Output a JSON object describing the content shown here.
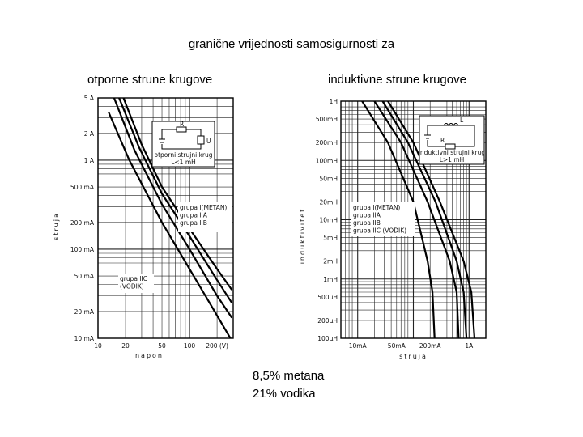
{
  "slide": {
    "title": "granične vrijednosti samosigurnosti za",
    "left_heading": "otporne strune krugove",
    "right_heading": "induktivne strune krugove",
    "notes": [
      "8,5% metana",
      "21% vodika"
    ]
  },
  "chart_data": [
    {
      "type": "line",
      "title": "",
      "xlabel": "napon",
      "ylabel": "struja",
      "x_scale": "log",
      "y_scale": "log",
      "xlim": [
        10,
        300
      ],
      "ylim": [
        0.01,
        5
      ],
      "x_tick_labels": [
        "10",
        "20",
        "50",
        "100",
        "200 (V)"
      ],
      "x_tick_values": [
        10,
        20,
        50,
        100,
        200
      ],
      "y_tick_labels": [
        "5 A",
        "2 A",
        "1 A",
        "500 mA",
        "200 mA",
        "100 mA",
        "50 mA",
        "20 mA",
        "10 mA"
      ],
      "y_tick_values": [
        5,
        2,
        1,
        0.5,
        0.2,
        0.1,
        0.05,
        0.02,
        0.01
      ],
      "inset": [
        "otporni strujni krug",
        "L<1 mH"
      ],
      "annotation": [
        "grupa IIC",
        "(VODIK)"
      ],
      "series": [
        {
          "name": "grupa I(METAN)",
          "points": [
            [
              19,
              5
            ],
            [
              30,
              1.5
            ],
            [
              50,
              0.5
            ],
            [
              100,
              0.17
            ],
            [
              200,
              0.06
            ],
            [
              290,
              0.035
            ]
          ]
        },
        {
          "name": "grupa IIA",
          "points": [
            [
              17,
              5
            ],
            [
              28,
              1.4
            ],
            [
              50,
              0.42
            ],
            [
              100,
              0.14
            ],
            [
              200,
              0.045
            ],
            [
              290,
              0.025
            ]
          ]
        },
        {
          "name": "grupa IIB",
          "points": [
            [
              15,
              5
            ],
            [
              25,
              1.3
            ],
            [
              50,
              0.32
            ],
            [
              100,
              0.1
            ],
            [
              200,
              0.03
            ],
            [
              290,
              0.017
            ]
          ]
        },
        {
          "name": "",
          "points": [
            [
              13,
              3.5
            ],
            [
              22,
              1.0
            ],
            [
              50,
              0.2
            ],
            [
              100,
              0.06
            ],
            [
              200,
              0.018
            ],
            [
              280,
              0.01
            ]
          ]
        }
      ]
    },
    {
      "type": "line",
      "title": "",
      "xlabel": "struja",
      "ylabel": "induktivitet",
      "x_scale": "log",
      "y_scale": "log",
      "xlim": [
        0.005,
        2
      ],
      "ylim": [
        0.0001,
        1
      ],
      "x_tick_labels": [
        "10mA",
        "50mA",
        "200mA",
        "1A"
      ],
      "x_tick_values": [
        0.01,
        0.05,
        0.2,
        1
      ],
      "y_tick_labels": [
        "1H",
        "500mH",
        "200mH",
        "100mH",
        "50mH",
        "20mH",
        "10mH",
        "5mH",
        "2mH",
        "1mH",
        "500µH",
        "200µH",
        "100µH"
      ],
      "y_tick_values": [
        1,
        0.5,
        0.2,
        0.1,
        0.05,
        0.02,
        0.01,
        0.005,
        0.002,
        0.001,
        0.0005,
        0.0002,
        0.0001
      ],
      "inset": [
        "induktivni strujni krug",
        "L>1 mH"
      ],
      "series": [
        {
          "name": "grupa I(METAN)",
          "points": [
            [
              0.035,
              1
            ],
            [
              0.1,
              0.2
            ],
            [
              0.3,
              0.02
            ],
            [
              0.8,
              0.002
            ],
            [
              1.1,
              0.0006
            ],
            [
              1.25,
              0.0001
            ]
          ]
        },
        {
          "name": "grupa IIA",
          "points": [
            [
              0.028,
              1
            ],
            [
              0.08,
              0.2
            ],
            [
              0.25,
              0.02
            ],
            [
              0.6,
              0.002
            ],
            [
              0.8,
              0.0006
            ],
            [
              0.9,
              0.0001
            ]
          ]
        },
        {
          "name": "grupa IIB",
          "points": [
            [
              0.02,
              1
            ],
            [
              0.06,
              0.2
            ],
            [
              0.18,
              0.02
            ],
            [
              0.45,
              0.002
            ],
            [
              0.6,
              0.0006
            ],
            [
              0.65,
              0.0001
            ]
          ]
        },
        {
          "name": "grupa IIC (VODIK)",
          "points": [
            [
              0.012,
              1
            ],
            [
              0.035,
              0.2
            ],
            [
              0.1,
              0.02
            ],
            [
              0.18,
              0.002
            ],
            [
              0.22,
              0.0006
            ],
            [
              0.24,
              0.0001
            ]
          ]
        }
      ]
    }
  ]
}
